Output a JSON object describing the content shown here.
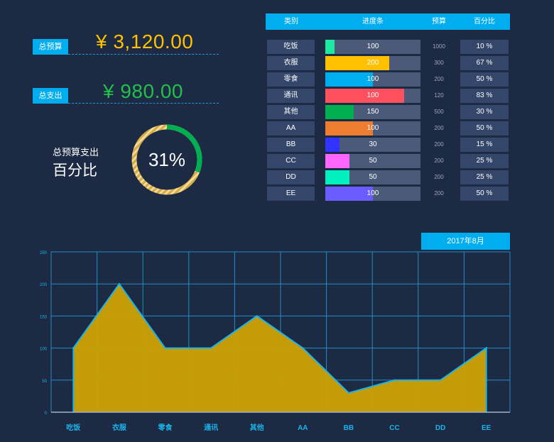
{
  "summary": {
    "total_budget_label": "总预算",
    "total_budget_value": "¥  3,120.00",
    "total_expense_label": "总支出",
    "total_expense_value": "¥  980.00",
    "ratio_label_line1": "总预算支出",
    "ratio_label_line2": "百分比",
    "ratio_percent": "31%",
    "ratio_fraction": 0.31
  },
  "colors": {
    "budget_value": "#ffc000",
    "expense_value": "#22c04a",
    "accent": "#00aeef",
    "area_fill": "#c9a006",
    "area_line": "#1bb4ea",
    "ring_done": "#00b050",
    "ring_rest": "#d9ad45"
  },
  "table": {
    "headers": [
      "类别",
      "进度条",
      "预算",
      "百分比"
    ],
    "rows": [
      {
        "category": "吃饭",
        "spent": "100",
        "budget": "1000",
        "percent": "10  %",
        "fraction": 0.1,
        "color": "#1de9a0"
      },
      {
        "category": "衣服",
        "spent": "200",
        "budget": "300",
        "percent": "67  %",
        "fraction": 0.67,
        "color": "#ffc000"
      },
      {
        "category": "零食",
        "spent": "100",
        "budget": "200",
        "percent": "50  %",
        "fraction": 0.5,
        "color": "#00aeef"
      },
      {
        "category": "通讯",
        "spent": "100",
        "budget": "120",
        "percent": "83  %",
        "fraction": 0.83,
        "color": "#ff5060"
      },
      {
        "category": "其他",
        "spent": "150",
        "budget": "500",
        "percent": "30  %",
        "fraction": 0.3,
        "color": "#00b050"
      },
      {
        "category": "AA",
        "spent": "100",
        "budget": "200",
        "percent": "50  %",
        "fraction": 0.5,
        "color": "#ed7d31"
      },
      {
        "category": "BB",
        "spent": "30",
        "budget": "200",
        "percent": "15  %",
        "fraction": 0.15,
        "color": "#3333ff"
      },
      {
        "category": "CC",
        "spent": "50",
        "budget": "200",
        "percent": "25  %",
        "fraction": 0.25,
        "color": "#ff66ff"
      },
      {
        "category": "DD",
        "spent": "50",
        "budget": "200",
        "percent": "25  %",
        "fraction": 0.25,
        "color": "#00f0c0"
      },
      {
        "category": "EE",
        "spent": "100",
        "budget": "200",
        "percent": "50  %",
        "fraction": 0.5,
        "color": "#6a5cff"
      }
    ]
  },
  "month_label": "2017年8月",
  "chart_data": {
    "type": "area",
    "categories": [
      "吃饭",
      "衣服",
      "零食",
      "通讯",
      "其他",
      "AA",
      "BB",
      "CC",
      "DD",
      "EE"
    ],
    "series": [
      {
        "values": [
          100,
          200,
          100,
          100,
          150,
          100,
          30,
          50,
          50,
          100
        ]
      }
    ],
    "yticks": [
      "0",
      "50",
      "100",
      "150",
      "200",
      "250"
    ],
    "ylim": [
      0,
      250
    ],
    "grid": true
  }
}
